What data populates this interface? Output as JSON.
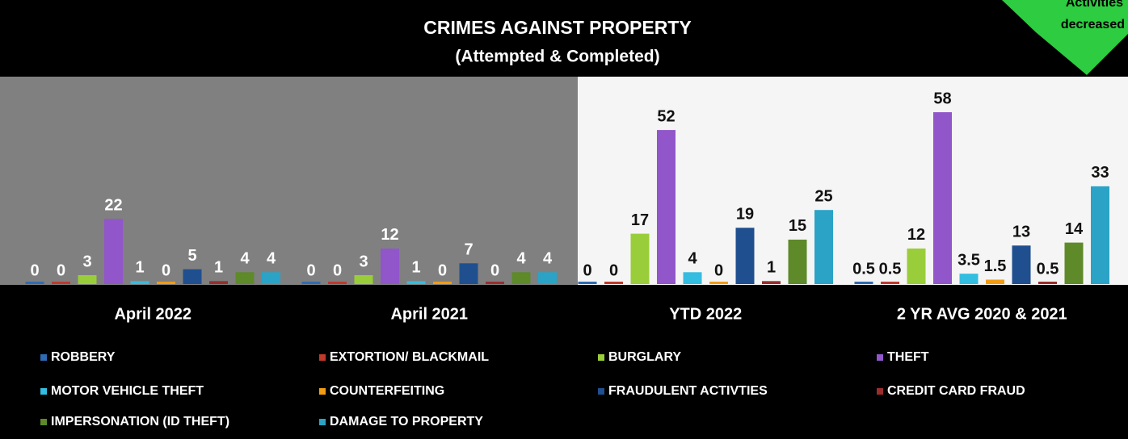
{
  "chart_data": {
    "type": "bar",
    "title": "CRIMES AGAINST PROPERTY",
    "subtitle": "(Attempted & Completed)",
    "annotation": [
      "Activities",
      "decreased"
    ],
    "categories": [
      "April  2022",
      "April  2021",
      "YTD 2022",
      "2 YR AVG 2020 & 2021"
    ],
    "ylim": [
      0,
      70
    ],
    "series": [
      {
        "name": "ROBBERY",
        "color": "#2f6bb3",
        "values": [
          0,
          0,
          0,
          0.5
        ]
      },
      {
        "name": "EXTORTION/ BLACKMAIL",
        "color": "#c0392b",
        "values": [
          0,
          0,
          0,
          0.5
        ]
      },
      {
        "name": "BURGLARY",
        "color": "#9acd3a",
        "values": [
          3,
          3,
          17,
          12
        ]
      },
      {
        "name": "THEFT",
        "color": "#9156c9",
        "values": [
          22,
          12,
          52,
          58
        ]
      },
      {
        "name": "MOTOR VEHICLE THEFT",
        "color": "#33bde0",
        "values": [
          1,
          1,
          4,
          3.5
        ]
      },
      {
        "name": "COUNTERFEITING",
        "color": "#f39c12",
        "values": [
          0,
          0,
          0,
          1.5
        ]
      },
      {
        "name": "FRAUDULENT ACTIVTIES",
        "color": "#1f4f8f",
        "values": [
          5,
          7,
          19,
          13
        ]
      },
      {
        "name": "CREDIT CARD FRAUD",
        "color": "#9b2d2d",
        "values": [
          1,
          0,
          1,
          0.5
        ]
      },
      {
        "name": "IMPERSONATION (ID THEFT)",
        "color": "#5e8a2a",
        "values": [
          4,
          4,
          15,
          14
        ]
      },
      {
        "name": "DAMAGE TO PROPERTY",
        "color": "#2aa3c6",
        "values": [
          4,
          4,
          25,
          33
        ]
      }
    ]
  }
}
